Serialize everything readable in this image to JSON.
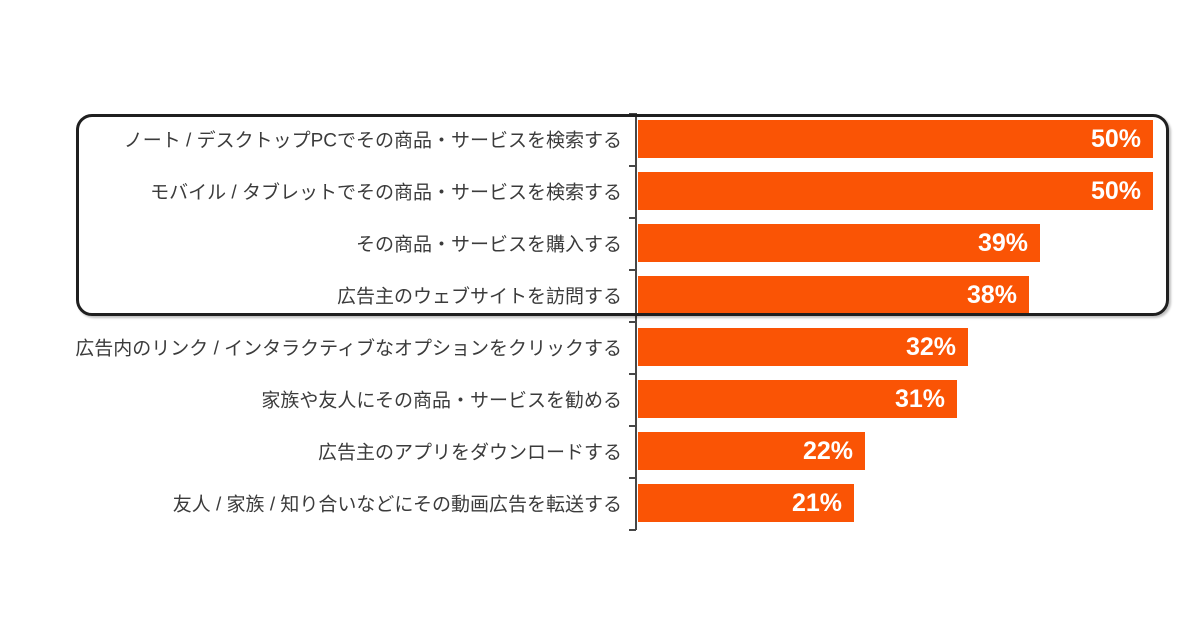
{
  "chart_data": {
    "type": "bar",
    "orientation": "horizontal",
    "title": "",
    "xlabel": "",
    "ylabel": "",
    "grid": false,
    "legend": false,
    "xlim": [
      0,
      52
    ],
    "categories": [
      "ノート / デスクトップPCでその商品・サービスを検索する",
      "モバイル / タブレットでその商品・サービスを検索する",
      "その商品・サービスを購入する",
      "広告主のウェブサイトを訪問する",
      "広告内のリンク / インタラクティブなオプションをクリックする",
      "家族や友人にその商品・サービスを勧める",
      "広告主のアプリをダウンロードする",
      "友人 / 家族 / 知り合いなどにその動画広告を転送する"
    ],
    "values": [
      50,
      50,
      39,
      38,
      32,
      31,
      22,
      21
    ],
    "value_suffix": "%",
    "bar_color": "#FA5405",
    "value_label_color": "#FFFFFF",
    "category_label_color": "#3B3B3B",
    "axis_color": "#474747",
    "highlight_box": {
      "row_start": 0,
      "row_end": 3,
      "border_color": "#1F1F1F"
    }
  }
}
